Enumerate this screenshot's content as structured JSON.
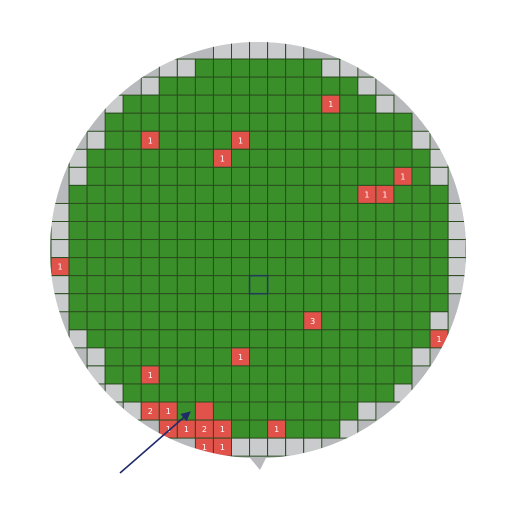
{
  "wafer_map": {
    "colors": {
      "wafer": "#b7b9bc",
      "pass_die": "#3a8f2a",
      "fail_die": "#e0524a",
      "edge_die": "#c9cbcd",
      "grid_line": "#2b4d1f",
      "annotation_arrow": "#1f2a6b"
    },
    "fail_dies": [
      {
        "row": 3,
        "col": 15,
        "count": "1"
      },
      {
        "row": 5,
        "col": 5,
        "count": "1"
      },
      {
        "row": 5,
        "col": 10,
        "count": "1"
      },
      {
        "row": 6,
        "col": 9,
        "count": "1"
      },
      {
        "row": 7,
        "col": 19,
        "count": "1"
      },
      {
        "row": 8,
        "col": 17,
        "count": "1"
      },
      {
        "row": 8,
        "col": 18,
        "count": "1"
      },
      {
        "row": 12,
        "col": 0,
        "count": "1"
      },
      {
        "row": 15,
        "col": 14,
        "count": "3"
      },
      {
        "row": 16,
        "col": 21,
        "count": "1"
      },
      {
        "row": 17,
        "col": 1,
        "count": "1"
      },
      {
        "row": 17,
        "col": 10,
        "count": "1"
      },
      {
        "row": 18,
        "col": 5,
        "count": "1"
      },
      {
        "row": 20,
        "col": 5,
        "count": "2"
      },
      {
        "row": 20,
        "col": 6,
        "count": "1"
      },
      {
        "row": 20,
        "col": 8,
        "count": ""
      },
      {
        "row": 21,
        "col": 6,
        "count": "1"
      },
      {
        "row": 21,
        "col": 7,
        "count": "1"
      },
      {
        "row": 21,
        "col": 8,
        "count": "2"
      },
      {
        "row": 21,
        "col": 9,
        "count": "1"
      },
      {
        "row": 21,
        "col": 12,
        "count": "1"
      },
      {
        "row": 22,
        "col": 5,
        "count": "1"
      },
      {
        "row": 22,
        "col": 6,
        "count": "2"
      },
      {
        "row": 22,
        "col": 8,
        "count": "1"
      },
      {
        "row": 22,
        "col": 9,
        "count": "1"
      },
      {
        "row": 23,
        "col": 6,
        "count": "1"
      },
      {
        "row": 23,
        "col": 7,
        "count": "2"
      },
      {
        "row": 23,
        "col": 8,
        "count": "1"
      },
      {
        "row": 23,
        "col": 9,
        "count": "2"
      },
      {
        "row": 24,
        "col": 6,
        "count": "2"
      },
      {
        "row": 24,
        "col": 7,
        "count": "1"
      },
      {
        "row": 24,
        "col": 8,
        "count": "1"
      },
      {
        "row": 24,
        "col": 9,
        "count": "1"
      }
    ],
    "center_die": {
      "row": 13,
      "col": 11
    },
    "arrow_marker": "annotation-arrow"
  }
}
